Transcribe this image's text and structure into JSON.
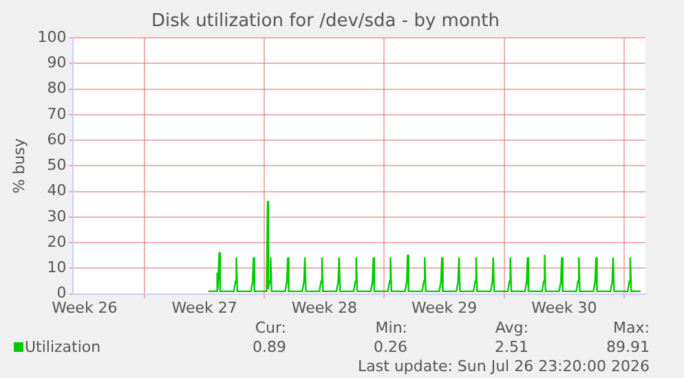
{
  "chart_data": {
    "type": "line",
    "title": "Disk utilization for /dev/sda - by month",
    "ylabel": "% busy",
    "xlim": [
      "2026-06-23T20:00",
      "2026-07-27T06:00"
    ],
    "xticks": [
      {
        "value": "2026-06-24T12:00",
        "label": "Week 26"
      },
      {
        "value": "2026-06-28T00:00",
        "label": null
      },
      {
        "value": "2026-07-01T12:00",
        "label": "Week 27"
      },
      {
        "value": "2026-07-05T00:00",
        "label": null
      },
      {
        "value": "2026-07-08T12:00",
        "label": "Week 28"
      },
      {
        "value": "2026-07-12T00:00",
        "label": null
      },
      {
        "value": "2026-07-15T12:00",
        "label": "Week 29"
      },
      {
        "value": "2026-07-19T00:00",
        "label": null
      },
      {
        "value": "2026-07-22T12:00",
        "label": "Week 30"
      },
      {
        "value": "2026-07-26T00:00",
        "label": null
      }
    ],
    "ylim": [
      0,
      100
    ],
    "yticks": [
      0,
      10,
      20,
      30,
      40,
      50,
      60,
      70,
      80,
      90,
      100
    ],
    "grid": true,
    "legend": "bottom left",
    "marker": "none",
    "series": [
      {
        "name": "Utilization",
        "color": "#00cc00",
        "x": [
          "2026-07-01T17:20",
          "2026-07-02T05:00",
          "2026-07-02T05:50",
          "2026-07-02T06:40",
          "2026-07-02T08:40",
          "2026-07-02T10:00",
          "2026-07-03T05:00",
          "2026-07-03T07:30",
          "2026-07-03T08:40",
          "2026-07-03T10:00",
          "2026-07-04T05:00",
          "2026-07-04T07:30",
          "2026-07-04T08:40",
          "2026-07-04T10:00",
          "2026-07-05T03:00",
          "2026-07-05T04:30",
          "2026-07-05T05:30",
          "2026-07-05T07:30",
          "2026-07-05T08:40",
          "2026-07-05T10:00",
          "2026-07-06T05:00",
          "2026-07-06T07:30",
          "2026-07-06T08:40",
          "2026-07-06T10:00",
          "2026-07-07T05:00",
          "2026-07-07T07:30",
          "2026-07-07T08:40",
          "2026-07-07T10:00",
          "2026-07-08T05:00",
          "2026-07-08T07:30",
          "2026-07-08T08:40",
          "2026-07-08T10:00",
          "2026-07-09T05:00",
          "2026-07-09T07:30",
          "2026-07-09T08:40",
          "2026-07-09T10:00",
          "2026-07-10T05:00",
          "2026-07-10T07:30",
          "2026-07-10T08:40",
          "2026-07-10T10:00",
          "2026-07-11T05:00",
          "2026-07-11T07:30",
          "2026-07-11T08:40",
          "2026-07-11T10:00",
          "2026-07-12T05:00",
          "2026-07-12T07:30",
          "2026-07-12T08:40",
          "2026-07-12T10:00",
          "2026-07-13T05:00",
          "2026-07-13T07:30",
          "2026-07-13T08:40",
          "2026-07-13T10:00",
          "2026-07-14T05:00",
          "2026-07-14T07:30",
          "2026-07-14T08:40",
          "2026-07-14T10:00",
          "2026-07-15T05:00",
          "2026-07-15T07:30",
          "2026-07-15T08:40",
          "2026-07-15T10:00",
          "2026-07-16T05:00",
          "2026-07-16T07:30",
          "2026-07-16T08:40",
          "2026-07-16T10:00",
          "2026-07-17T05:00",
          "2026-07-17T07:30",
          "2026-07-17T08:40",
          "2026-07-17T10:00",
          "2026-07-18T05:00",
          "2026-07-18T07:30",
          "2026-07-18T08:40",
          "2026-07-18T10:00",
          "2026-07-19T05:00",
          "2026-07-19T07:30",
          "2026-07-19T08:40",
          "2026-07-19T10:00",
          "2026-07-20T05:00",
          "2026-07-20T07:30",
          "2026-07-20T08:40",
          "2026-07-20T10:00",
          "2026-07-21T05:00",
          "2026-07-21T07:30",
          "2026-07-21T08:40",
          "2026-07-21T10:00",
          "2026-07-22T05:00",
          "2026-07-22T07:30",
          "2026-07-22T08:40",
          "2026-07-22T10:00",
          "2026-07-23T05:00",
          "2026-07-23T07:30",
          "2026-07-23T08:40",
          "2026-07-23T10:00",
          "2026-07-24T05:00",
          "2026-07-24T07:30",
          "2026-07-24T08:40",
          "2026-07-24T10:00",
          "2026-07-25T05:00",
          "2026-07-25T07:30",
          "2026-07-25T08:40",
          "2026-07-25T10:00",
          "2026-07-26T05:00",
          "2026-07-26T07:30",
          "2026-07-26T08:40",
          "2026-07-26T10:00",
          "2026-07-26T23:20"
        ],
        "values": [
          1,
          1,
          8,
          2,
          16,
          1,
          1,
          5,
          14,
          1,
          1,
          5,
          14,
          1,
          1,
          36,
          2,
          5,
          14,
          1,
          1,
          5,
          14,
          1,
          1,
          5,
          14,
          1,
          1,
          5,
          14,
          1,
          1,
          5,
          14,
          1,
          1,
          5,
          14,
          1,
          1,
          5,
          14,
          1,
          1,
          5,
          14,
          1,
          1,
          5,
          15,
          1,
          1,
          5,
          14,
          1,
          1,
          5,
          14,
          1,
          1,
          5,
          14,
          1,
          1,
          5,
          14,
          1,
          1,
          5,
          14,
          1,
          1,
          5,
          14,
          1,
          1,
          5,
          14,
          1,
          1,
          5,
          15,
          1,
          1,
          5,
          14,
          1,
          1,
          5,
          14,
          1,
          1,
          5,
          14,
          1,
          1,
          5,
          14,
          1,
          1,
          5,
          14,
          1,
          1
        ]
      }
    ],
    "annotations": [
      "Cur:",
      "Min:",
      "Avg:",
      "Max:",
      "0.89",
      "0.26",
      "2.51",
      "89.91",
      "Last update: Sun Jul 26 23:20:00 2026"
    ]
  }
}
